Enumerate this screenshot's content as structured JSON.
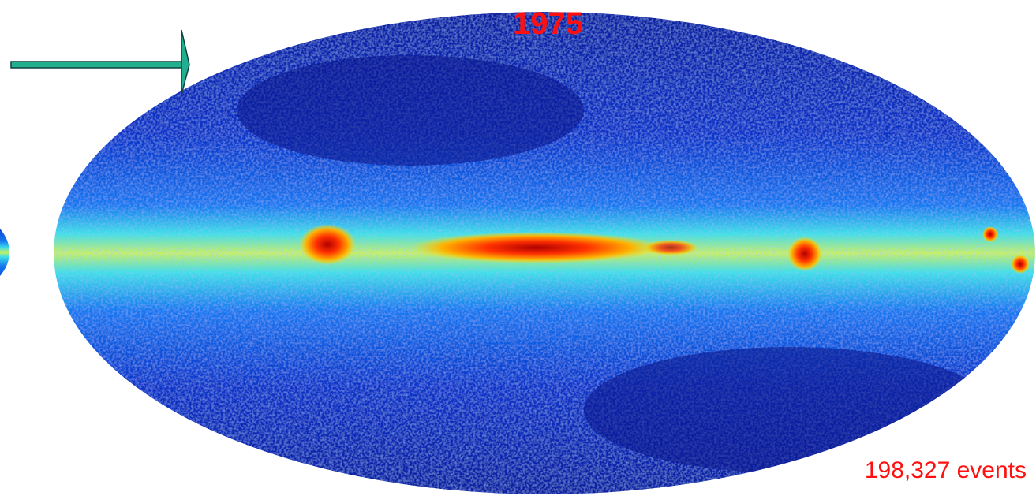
{
  "title": "1975",
  "caption": "198,327 events"
}
